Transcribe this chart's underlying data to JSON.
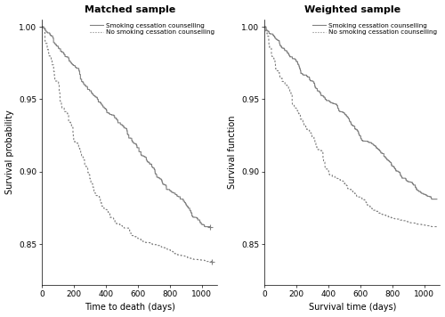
{
  "left_title": "Matched sample",
  "right_title": "Weighted sample",
  "left_xlabel": "Time to death (days)",
  "right_xlabel": "Survival time (days)",
  "left_ylabel": "Survival probability",
  "right_ylabel": "Survival function",
  "xlim": [
    0,
    1100
  ],
  "xticks": [
    0,
    200,
    400,
    600,
    800,
    1000
  ],
  "left_ylim": [
    0.822,
    1.005
  ],
  "right_ylim": [
    0.822,
    1.005
  ],
  "left_yticks": [
    0.85,
    0.9,
    0.95,
    1.0
  ],
  "right_yticks": [
    0.85,
    0.9,
    0.95,
    1.0
  ],
  "color_line": "#808080",
  "legend_label_treated": "Smoking cessation counselling",
  "legend_label_control": "No smoking cessation counselling",
  "bg_color": "#ffffff",
  "lw": 0.8
}
